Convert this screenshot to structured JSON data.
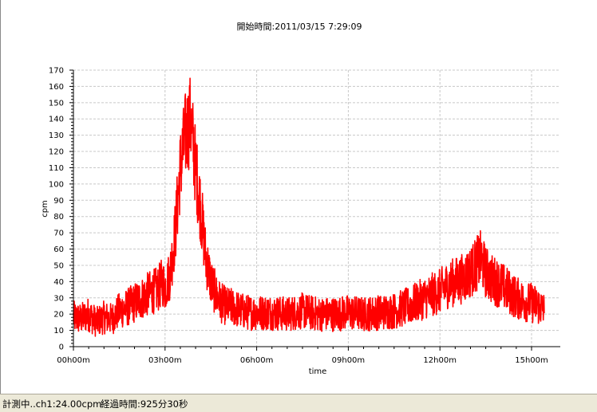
{
  "title": "開始時間:2011/03/15 7:29:09",
  "status": {
    "measuring": "計測中..ch1:24.00cpm",
    "elapsed": "経過時間:925分30秒"
  },
  "colors": {
    "series": "#ff0000",
    "grid": "#c8c8c8",
    "axis": "#000000",
    "statusbar": "#ece9d8"
  },
  "chart_data": {
    "type": "line",
    "xlabel": "time",
    "ylabel": "cpm",
    "ylim": [
      0,
      170
    ],
    "yticks": [
      0,
      10,
      20,
      30,
      40,
      50,
      60,
      70,
      80,
      90,
      100,
      110,
      120,
      130,
      140,
      150,
      160,
      170
    ],
    "xlim_minutes": [
      0,
      925.5
    ],
    "xticks": [
      {
        "minutes": 0,
        "label": "00h00m"
      },
      {
        "minutes": 180,
        "label": "03h00m"
      },
      {
        "minutes": 360,
        "label": "06h00m"
      },
      {
        "minutes": 540,
        "label": "09h00m"
      },
      {
        "minutes": 720,
        "label": "12h00m"
      },
      {
        "minutes": 900,
        "label": "15h00m"
      }
    ],
    "grid": true,
    "legend": "none",
    "series": [
      {
        "x_minutes": [
          0,
          15,
          30,
          45,
          60,
          75,
          90,
          105,
          120,
          135,
          150,
          165,
          175,
          180,
          190,
          200,
          210,
          220,
          225,
          230,
          235,
          240,
          250,
          260,
          270,
          280,
          290,
          300,
          315,
          330,
          345,
          360,
          390,
          420,
          450,
          480,
          510,
          540,
          570,
          600,
          630,
          660,
          690,
          720,
          735,
          750,
          765,
          780,
          795,
          800,
          810,
          820,
          840,
          855,
          870,
          885,
          900,
          915,
          925
        ],
        "y": [
          18,
          17,
          20,
          15,
          18,
          17,
          22,
          24,
          27,
          30,
          33,
          35,
          40,
          36,
          45,
          70,
          110,
          130,
          135,
          140,
          125,
          110,
          85,
          55,
          40,
          32,
          27,
          25,
          24,
          22,
          21,
          21,
          21,
          20,
          22,
          20,
          20,
          21,
          20,
          21,
          22,
          25,
          30,
          34,
          38,
          40,
          42,
          46,
          52,
          54,
          46,
          42,
          38,
          34,
          30,
          28,
          27,
          25,
          22
        ]
      }
    ]
  }
}
